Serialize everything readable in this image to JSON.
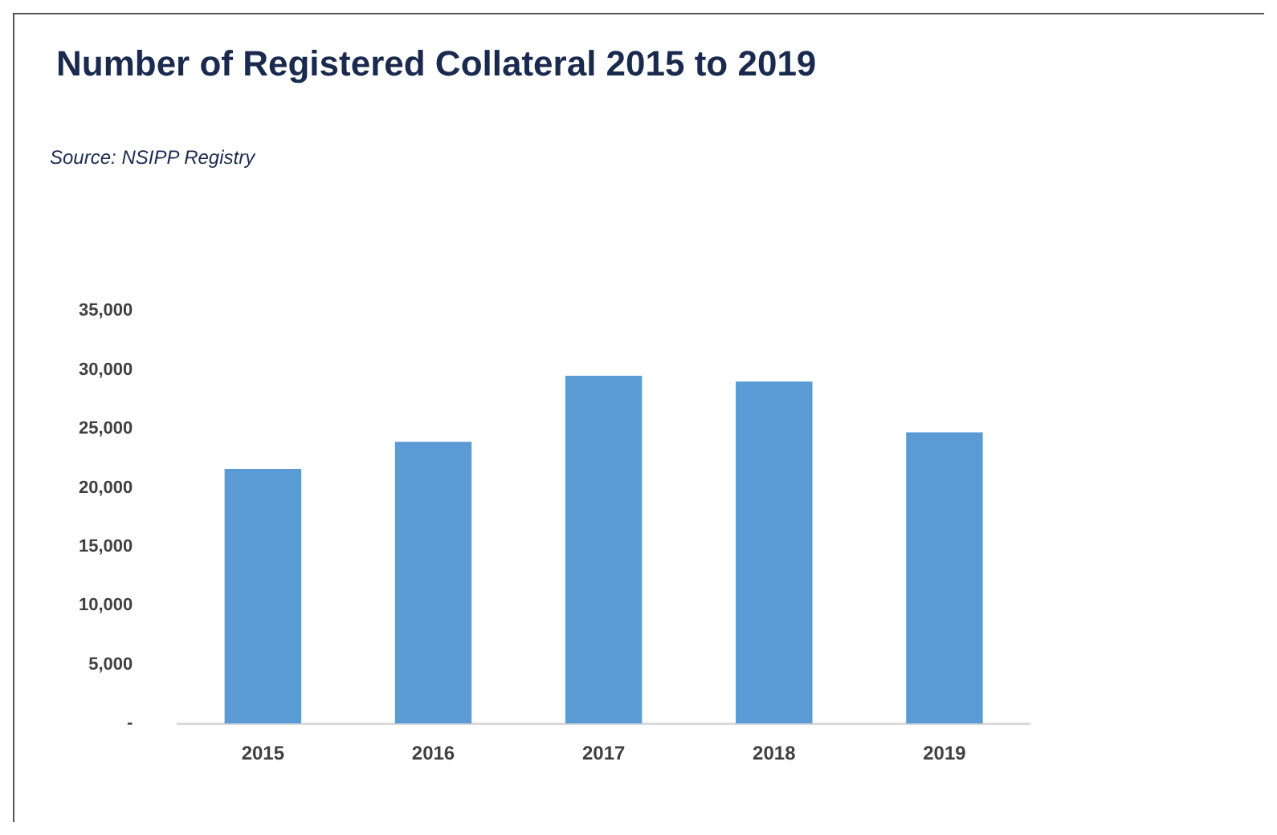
{
  "chart_data": {
    "type": "bar",
    "title": "Number of Registered Collateral 2015 to 2019",
    "annotations": [
      "Source: NSIPP Registry"
    ],
    "categories": [
      "2015",
      "2016",
      "2017",
      "2018",
      "2019"
    ],
    "values": [
      21600,
      23900,
      29500,
      29000,
      24700
    ],
    "color": "#5b9bd5",
    "ylim": [
      0,
      35000
    ],
    "yticks": [
      {
        "value": 0,
        "label": "-"
      },
      {
        "value": 5000,
        "label": "5,000"
      },
      {
        "value": 10000,
        "label": "10,000"
      },
      {
        "value": 15000,
        "label": "15,000"
      },
      {
        "value": 20000,
        "label": "20,000"
      },
      {
        "value": 25000,
        "label": "25,000"
      },
      {
        "value": 30000,
        "label": "30,000"
      },
      {
        "value": 35000,
        "label": "35,000"
      }
    ],
    "grid": false,
    "legend": false
  }
}
